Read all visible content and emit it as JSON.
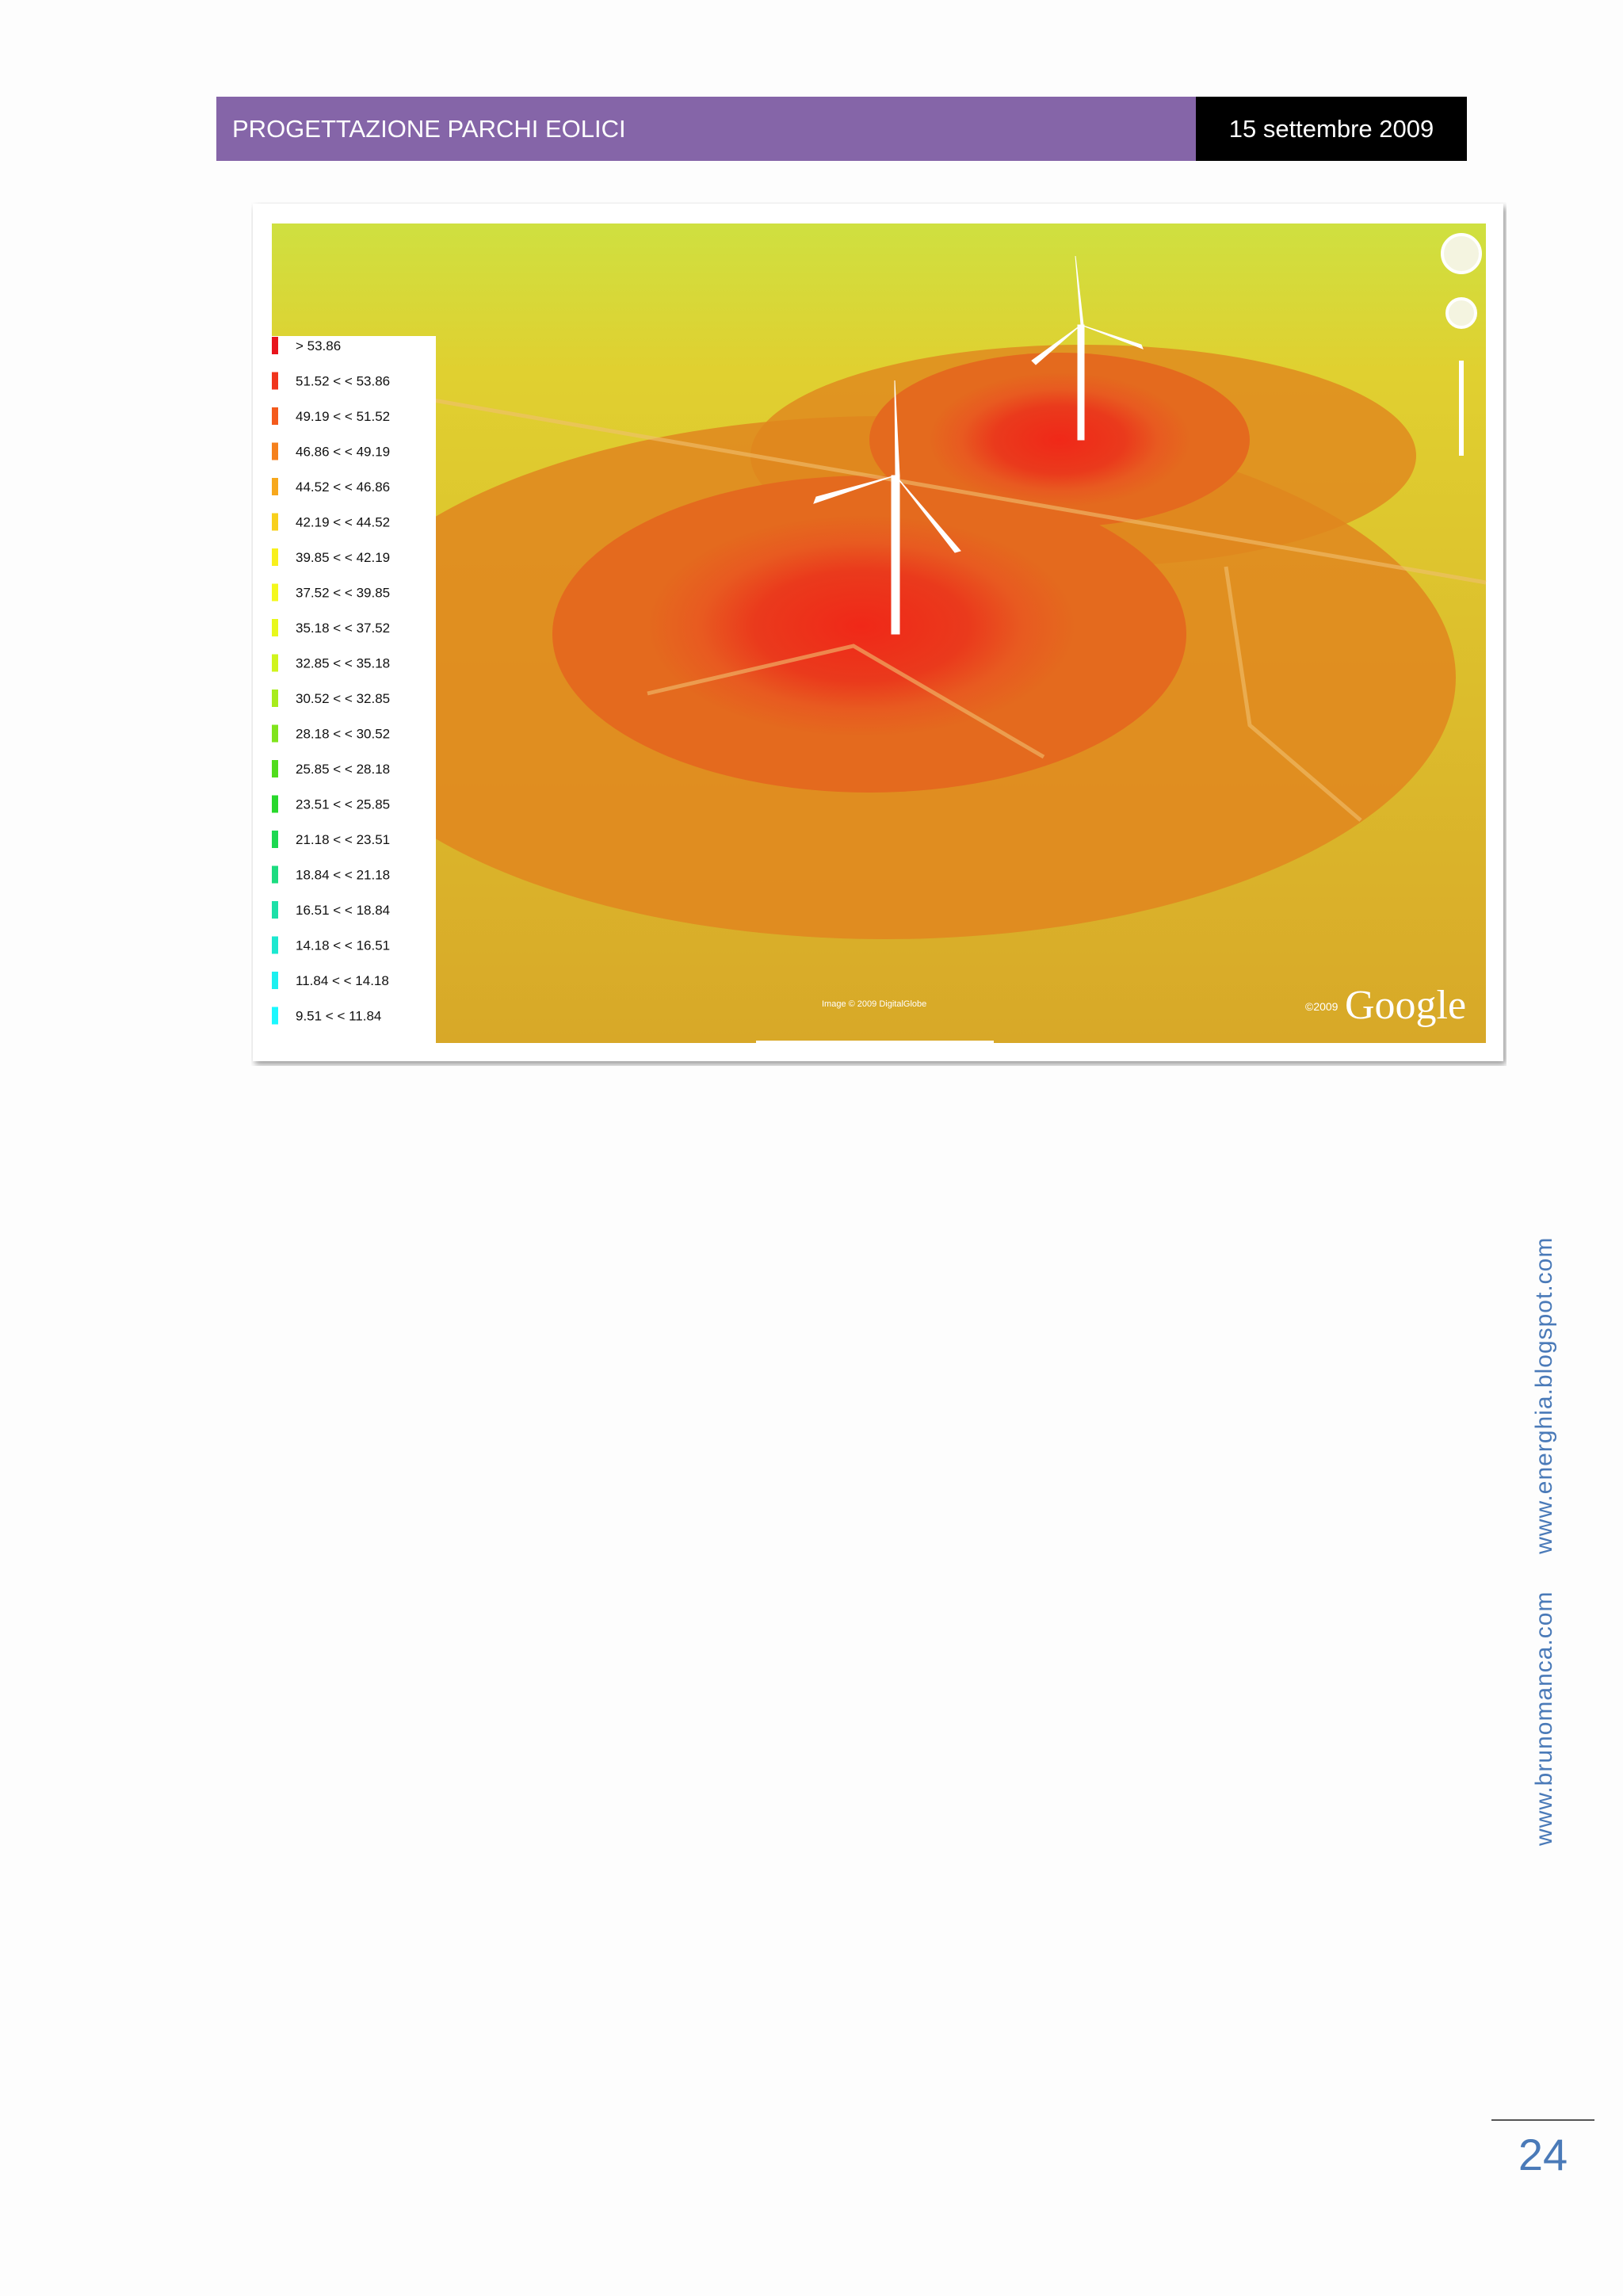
{
  "header": {
    "title": "PROGETTAZIONE PARCHI EOLICI",
    "date": "15 settembre 2009"
  },
  "map": {
    "legend": [
      {
        "label": "> 53.86",
        "color": "#e8141c"
      },
      {
        "label": "51.52 <  < 53.86",
        "color": "#f0341c"
      },
      {
        "label": "49.19 <  < 51.52",
        "color": "#f45a1c"
      },
      {
        "label": "46.86 <  < 49.19",
        "color": "#f5801c"
      },
      {
        "label": "44.52 <  < 46.86",
        "color": "#f7a81c"
      },
      {
        "label": "42.19 <  < 44.52",
        "color": "#f8d01c"
      },
      {
        "label": "39.85 <  < 42.19",
        "color": "#f8f01c"
      },
      {
        "label": "37.52 <  < 39.85",
        "color": "#f4f81c"
      },
      {
        "label": "35.18 <  < 37.52",
        "color": "#e8f81c"
      },
      {
        "label": "32.85 <  < 35.18",
        "color": "#d0f41c"
      },
      {
        "label": "30.52 <  < 32.85",
        "color": "#a8ec1c"
      },
      {
        "label": "28.18 <  < 30.52",
        "color": "#80e41c"
      },
      {
        "label": "25.85 <  < 28.18",
        "color": "#50dc1c"
      },
      {
        "label": "23.51 <  < 25.85",
        "color": "#28d82c"
      },
      {
        "label": "21.18 <  < 23.51",
        "color": "#1cd850"
      },
      {
        "label": "18.84 <  < 21.18",
        "color": "#1cdc80"
      },
      {
        "label": "16.51 <  < 18.84",
        "color": "#1ce0a8"
      },
      {
        "label": "14.18 <  < 16.51",
        "color": "#1ce8d0"
      },
      {
        "label": "11.84 <  < 14.18",
        "color": "#1cf0f0"
      },
      {
        "label": "9.51 <  < 11.84",
        "color": "#1cf8ff"
      }
    ],
    "copyright": "Image © 2009 DigitalGlobe",
    "logo_year": "©2009",
    "logo": "Google"
  },
  "side": {
    "text": "www.brunomanca.com     www.energhia.blogspot.com"
  },
  "footer": {
    "page": "24"
  }
}
